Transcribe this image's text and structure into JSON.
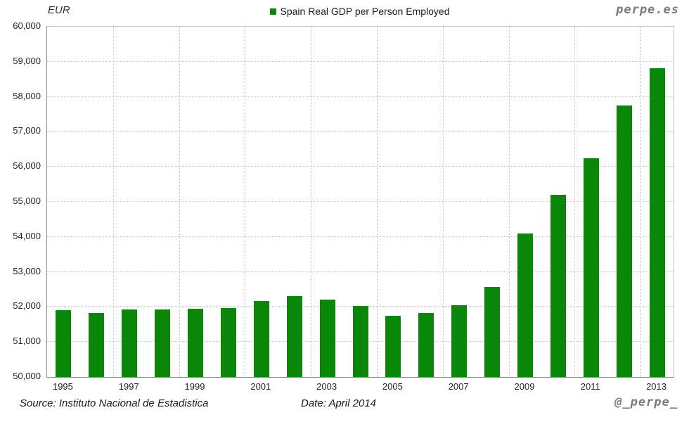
{
  "header": {
    "unit_label": "EUR",
    "brand": "perpe.es"
  },
  "legend": {
    "label": "Spain Real GDP per Person Employed",
    "marker_color": "#088708"
  },
  "footer": {
    "source": "Source: Instituto Nacional de Estadistica",
    "date": "Date: April 2014",
    "handle": "@_perpe_"
  },
  "chart_data": {
    "type": "bar",
    "title": "Spain Real GDP per Person Employed",
    "ylabel": "EUR",
    "xlabel": "",
    "categories": [
      "1995",
      "1996",
      "1997",
      "1998",
      "1999",
      "2000",
      "2001",
      "2002",
      "2003",
      "2004",
      "2005",
      "2006",
      "2007",
      "2008",
      "2009",
      "2010",
      "2011",
      "2012",
      "2013"
    ],
    "values": [
      51900,
      51820,
      51920,
      51920,
      51940,
      51960,
      52170,
      52300,
      52210,
      52020,
      51740,
      51820,
      52040,
      52580,
      54090,
      55200,
      56250,
      57760,
      58820
    ],
    "ylim": [
      50000,
      60000
    ],
    "y_tick_step": 1000,
    "y_tick_labels": [
      "50,000",
      "51,000",
      "52,000",
      "53,000",
      "54,000",
      "55,000",
      "56,000",
      "57,000",
      "58,000",
      "59,000",
      "60,000"
    ],
    "x_label_every": 2,
    "v_gridline_every": 2,
    "bar_color": "#088708",
    "grid": true,
    "legend_position": "top-center"
  }
}
